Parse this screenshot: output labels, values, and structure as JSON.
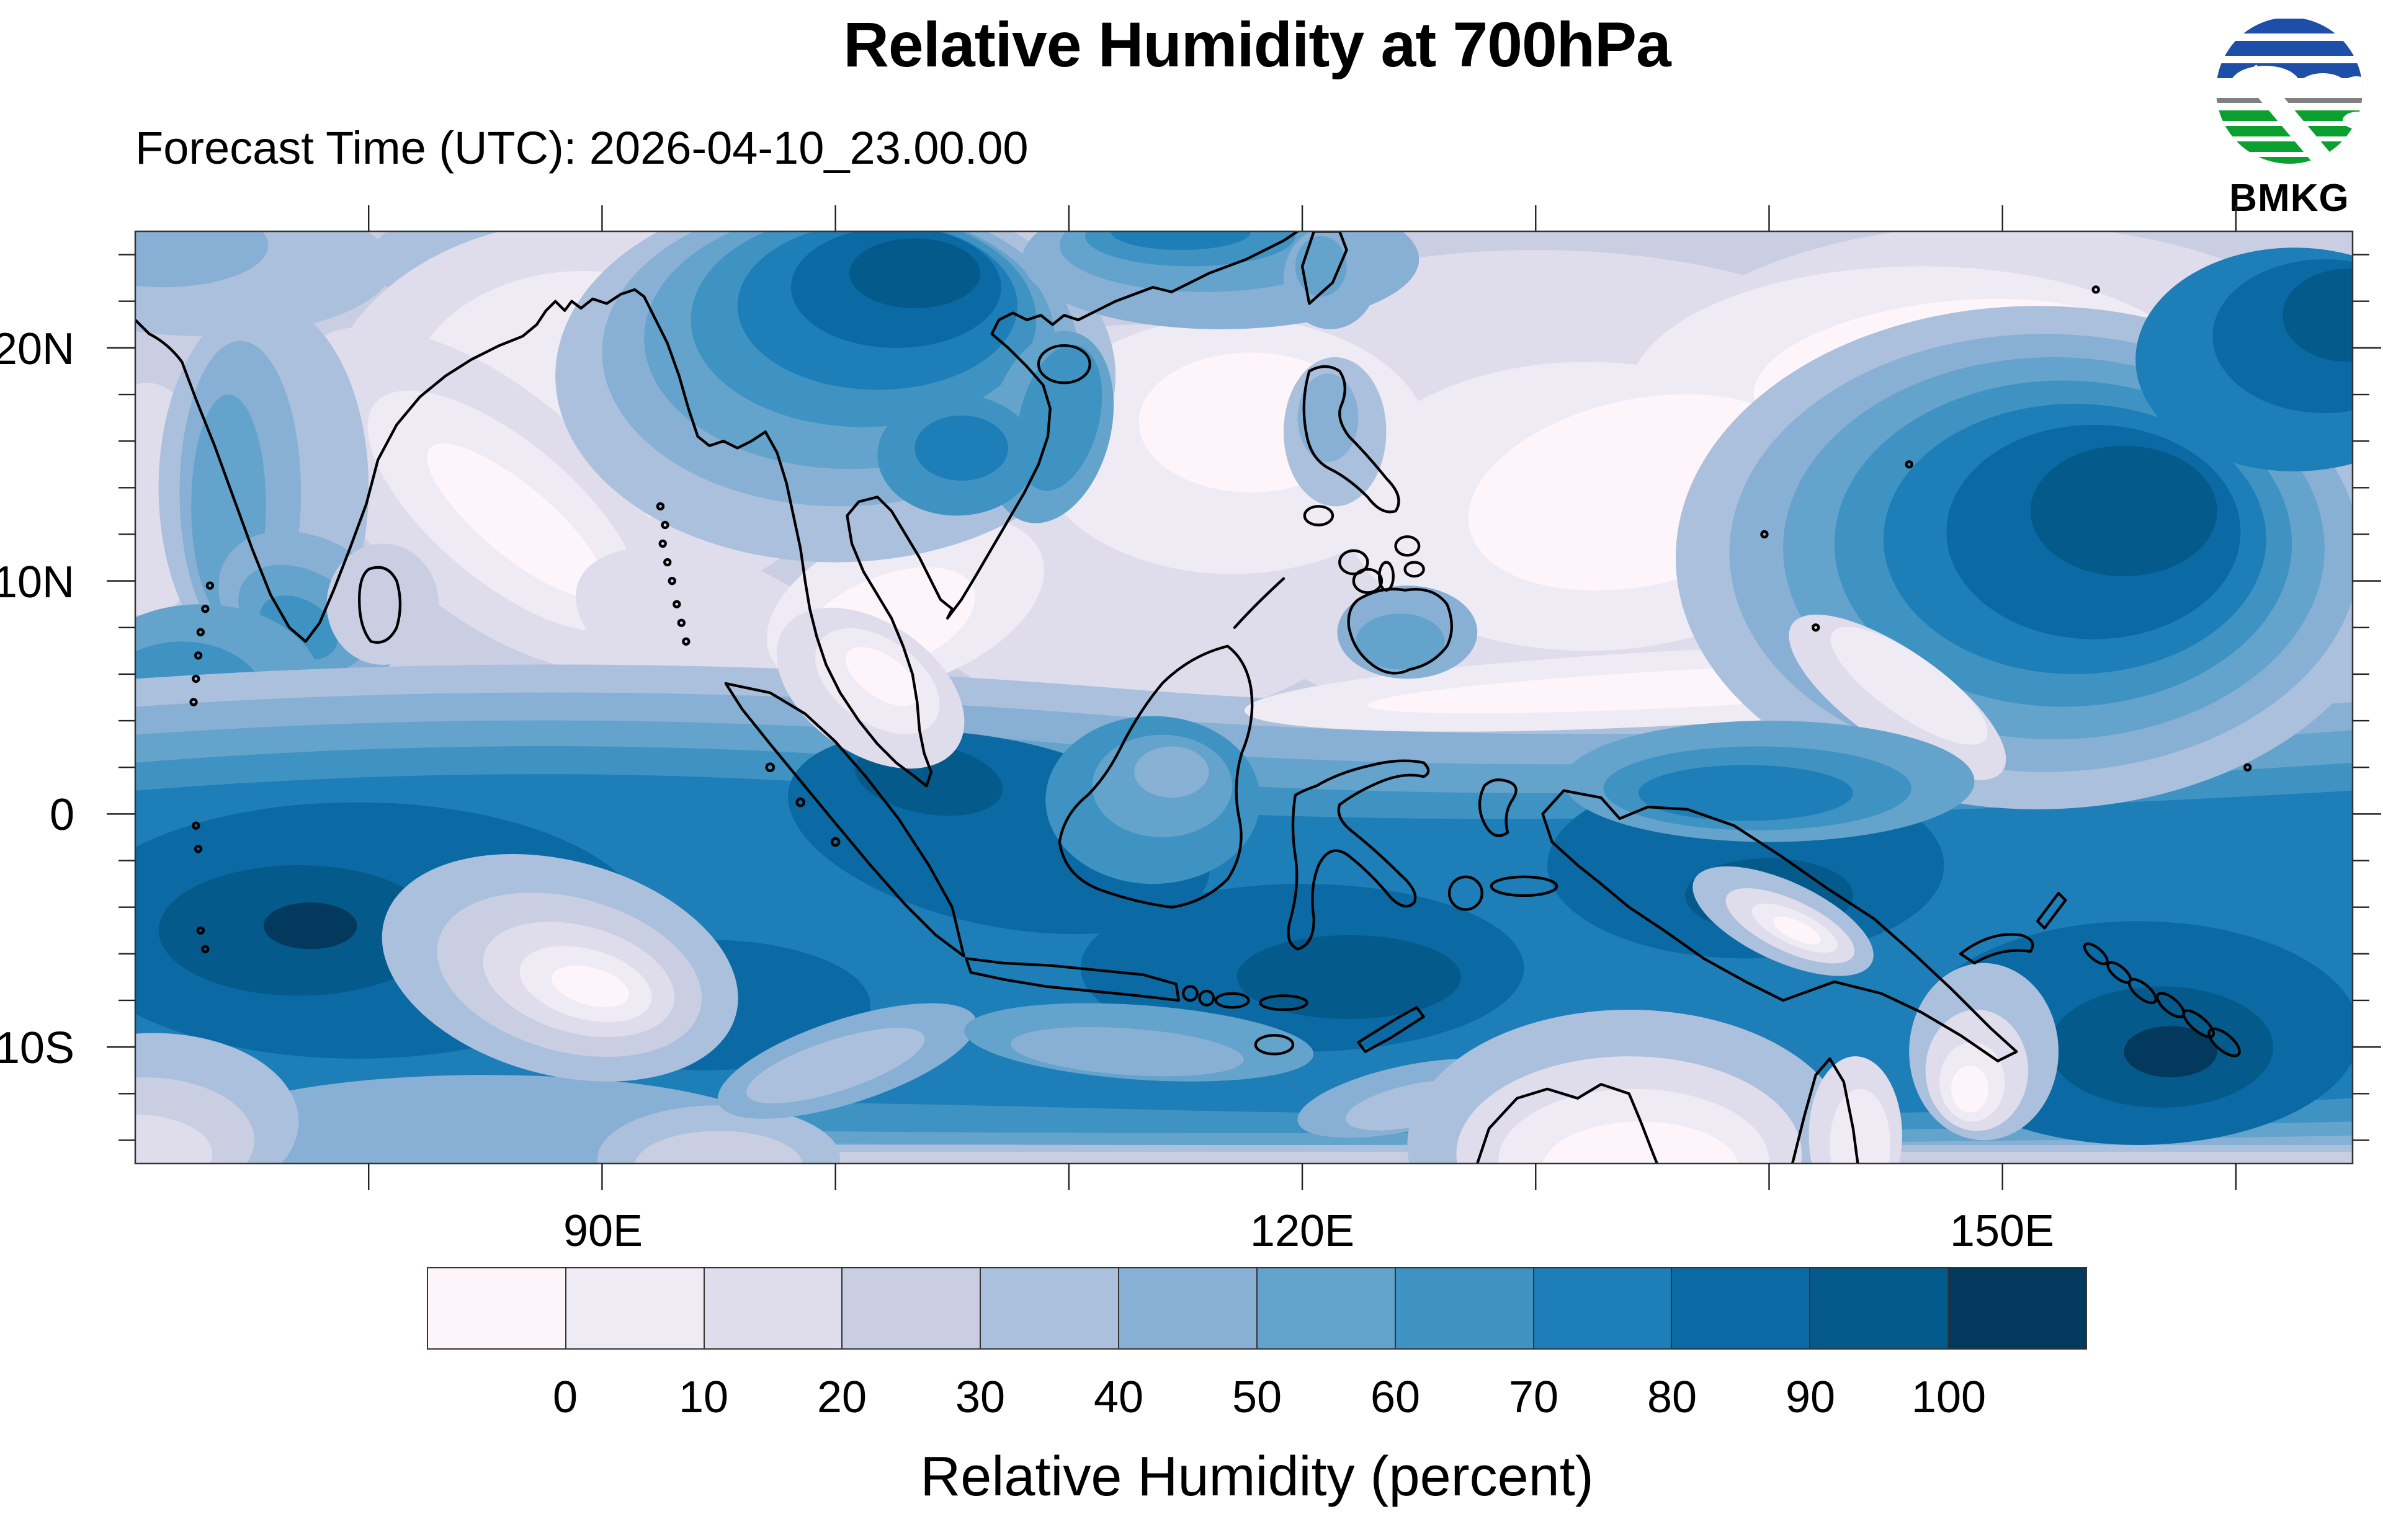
{
  "header": {
    "title": "Relative Humidity at 700hPa",
    "forecast": "Forecast Time (UTC): 2026-04-10_23.00.00"
  },
  "logo": {
    "caption": "BMKG",
    "blue": "#1d4fa8",
    "green": "#0b9f2f",
    "gray": "#808080"
  },
  "axes": {
    "lat_labels": [
      "20N",
      "10N",
      "0",
      "10S"
    ],
    "lon_labels": [
      "90E",
      "120E",
      "150E"
    ]
  },
  "colorbar": {
    "label": "Relative Humidity (percent)",
    "tick_labels": [
      "0",
      "10",
      "20",
      "30",
      "40",
      "50",
      "60",
      "70",
      "80",
      "90",
      "100"
    ],
    "colors": [
      "#fdf5fa",
      "#efebf4",
      "#dfddec",
      "#c9cee3",
      "#abc0dc",
      "#88b0d4",
      "#64a3cb",
      "#3f93c2",
      "#1e7eb7",
      "#0b6aa4",
      "#055a8c",
      "#02395c"
    ]
  },
  "chart_data": {
    "type": "heatmap",
    "title": "Relative Humidity at 700hPa",
    "subtitle": "Forecast Time (UTC): 2026-04-10_23.00.00",
    "variable": "Relative Humidity (percent)",
    "pressure_level_hPa": 700,
    "source_logo": "BMKG",
    "x_axis": {
      "labeled_ticks": [
        "90E",
        "120E",
        "150E"
      ],
      "range_deg_east": [
        70,
        165
      ],
      "major_tick_step_deg": 10
    },
    "y_axis": {
      "labeled_ticks": [
        "20N",
        "10N",
        "0",
        "10S"
      ],
      "range_deg_lat": [
        -15,
        25
      ],
      "major_tick_step_deg": 10,
      "minor_tick_step_deg": 2
    },
    "colorbar": {
      "label": "Relative Humidity (percent)",
      "levels": [
        0,
        10,
        20,
        30,
        40,
        50,
        60,
        70,
        80,
        90,
        100
      ],
      "colors": [
        "#fdf5fa",
        "#efebf4",
        "#dfddec",
        "#c9cee3",
        "#abc0dc",
        "#88b0d4",
        "#64a3cb",
        "#3f93c2",
        "#1e7eb7",
        "#0b6aa4",
        "#055a8c",
        "#02395c"
      ],
      "position": "bottom"
    },
    "grid": false,
    "notable_features": [
      "High humidity (80-100%) band along the equator across Indonesia and the Indian Ocean",
      "Dark high-humidity cell over Myanmar/Indochina near 95-110E, 18-25N",
      "Large cyclonic high-humidity swirl in the west Pacific near 150E, 12N",
      "Very dry band (0-20%) across the South China Sea and Philippine Sea, 5-20N",
      "Dry region over northern Australia near 130-140E, 12-15S"
    ]
  }
}
